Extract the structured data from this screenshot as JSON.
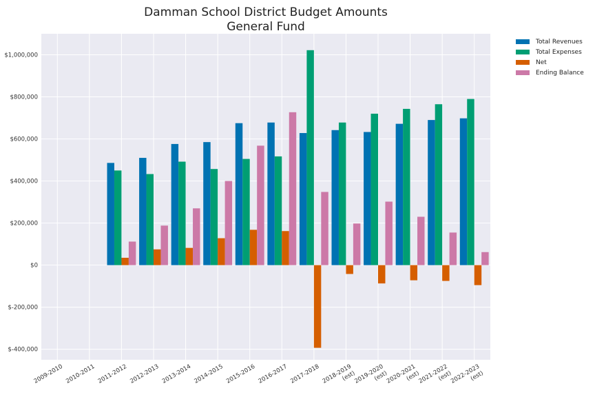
{
  "chart_data": {
    "type": "bar",
    "title": "Damman School District Budget Amounts",
    "subtitle": "General Fund",
    "xlabel": "",
    "ylabel": "",
    "ylim": [
      -450000,
      1100000
    ],
    "yticks": [
      -400000,
      -200000,
      0,
      200000,
      400000,
      600000,
      800000,
      1000000
    ],
    "ytick_labels": [
      "$-400,000",
      "$-200,000",
      "$0",
      "$200,000",
      "$400,000",
      "$600,000",
      "$800,000",
      "$1,000,000"
    ],
    "grid": true,
    "legend_position": "top-right, outside plot",
    "categories": [
      [
        "2009-2010"
      ],
      [
        "2010-2011"
      ],
      [
        "2011-2012"
      ],
      [
        "2012-2013"
      ],
      [
        "2013-2014"
      ],
      [
        "2014-2015"
      ],
      [
        "2015-2016"
      ],
      [
        "2016-2017"
      ],
      [
        "2017-2018"
      ],
      [
        "2018-2019",
        "(est)"
      ],
      [
        "2019-2020",
        "(est)"
      ],
      [
        "2020-2021",
        "(est)"
      ],
      [
        "2021-2022",
        "(est)"
      ],
      [
        "2022-2023",
        "(est)"
      ]
    ],
    "series": [
      {
        "name": "Total Revenues",
        "color": "#0072b2",
        "values": [
          null,
          null,
          486000,
          510000,
          576000,
          585000,
          675000,
          678000,
          628000,
          642000,
          633000,
          672000,
          690000,
          698000
        ]
      },
      {
        "name": "Total Expenses",
        "color": "#009e73",
        "values": [
          null,
          null,
          450000,
          433000,
          492000,
          457000,
          505000,
          517000,
          1022000,
          678000,
          720000,
          743000,
          765000,
          790000
        ]
      },
      {
        "name": "Net",
        "color": "#d55e00",
        "values": [
          null,
          null,
          35000,
          75000,
          82000,
          128000,
          168000,
          162000,
          -393000,
          -42000,
          -87000,
          -72000,
          -75000,
          -95000
        ]
      },
      {
        "name": "Ending Balance",
        "color": "#cc79a7",
        "values": [
          null,
          null,
          112000,
          188000,
          270000,
          400000,
          568000,
          727000,
          348000,
          198000,
          302000,
          230000,
          155000,
          62000
        ]
      }
    ]
  }
}
